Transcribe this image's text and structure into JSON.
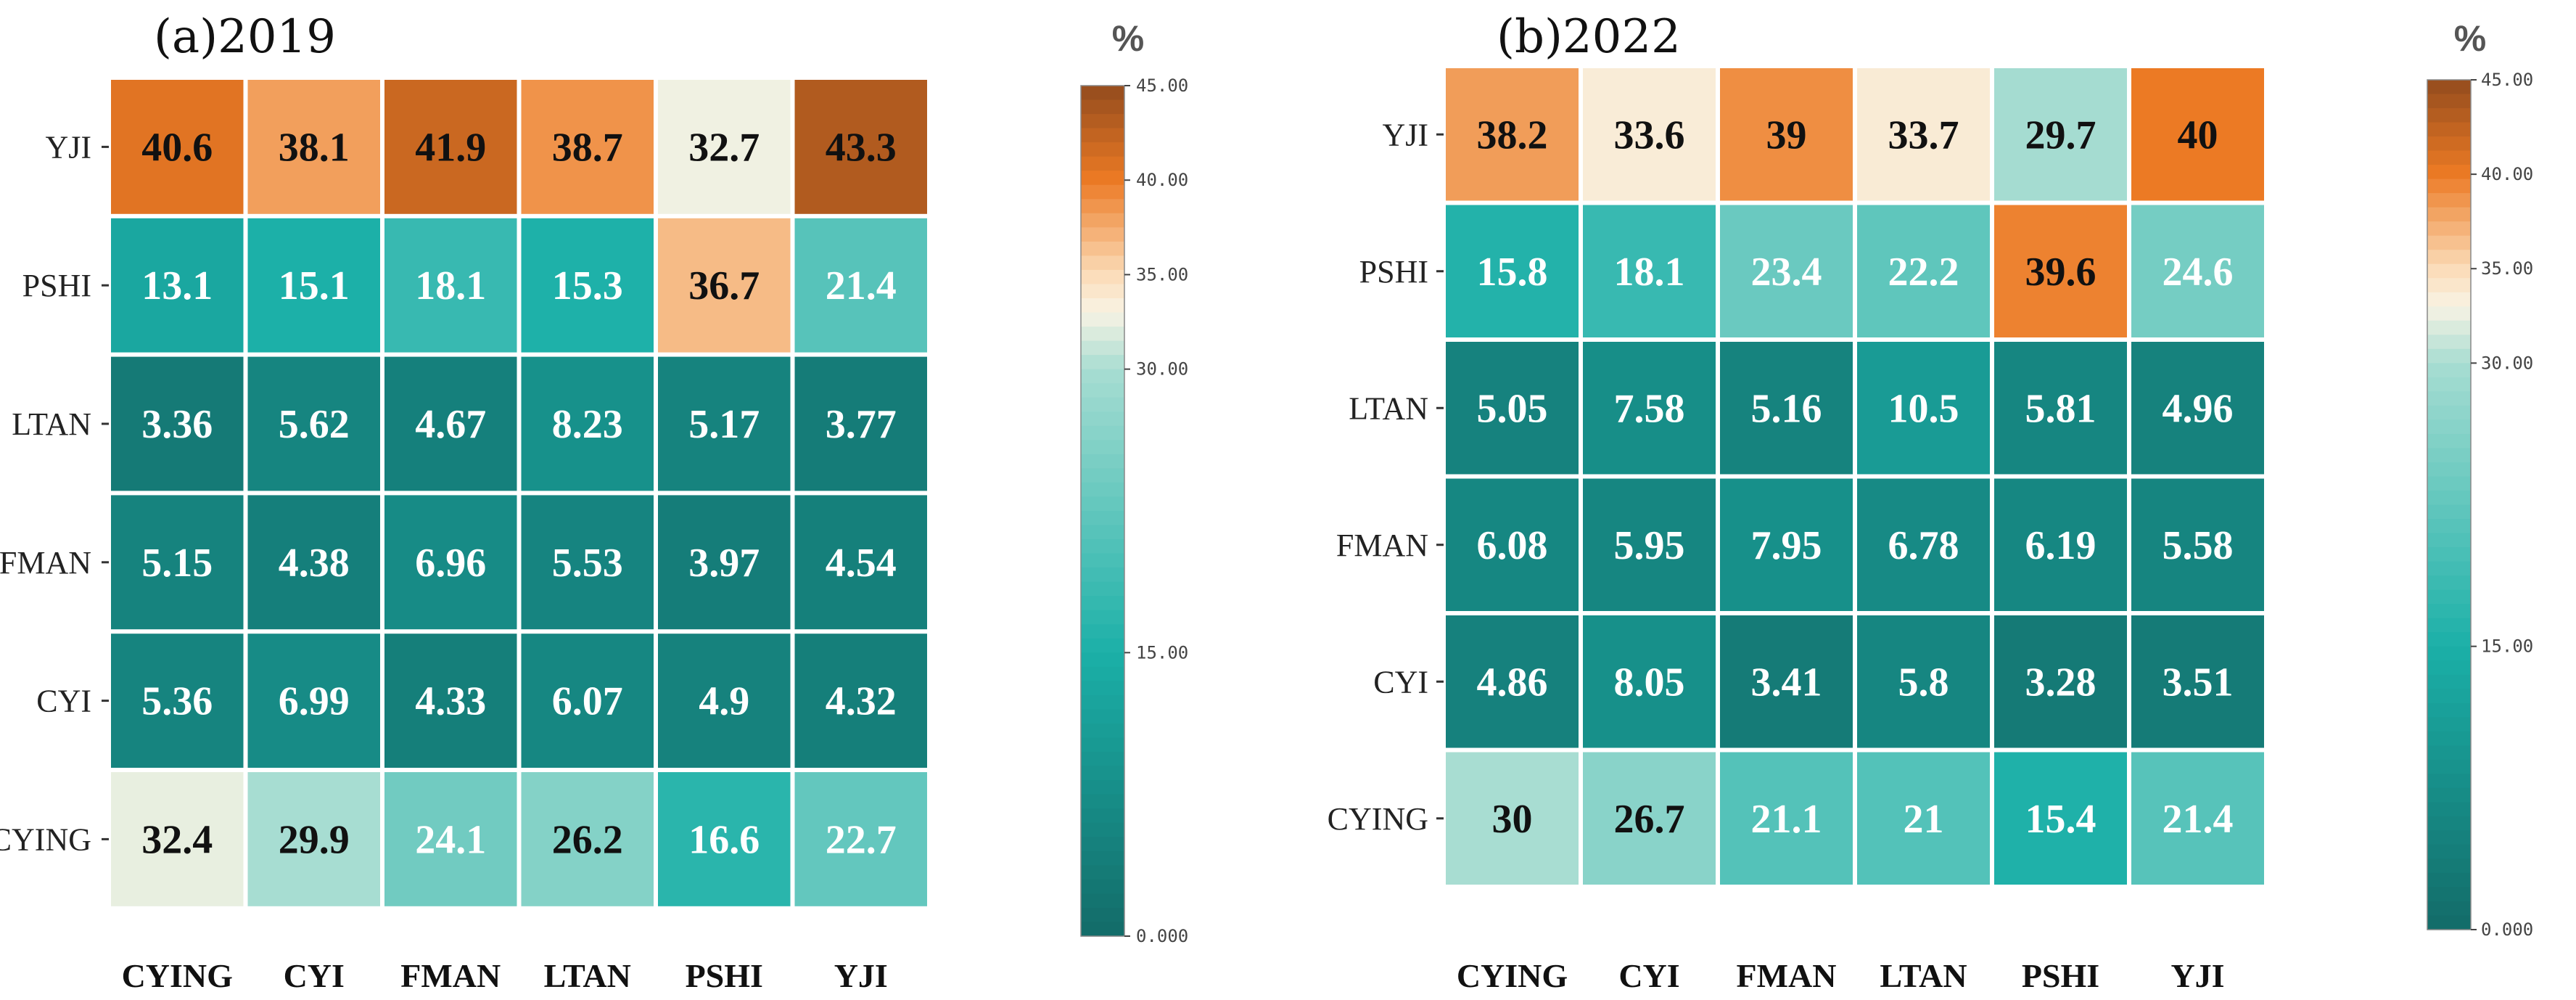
{
  "chart_data": [
    {
      "type": "heatmap",
      "title": "(a)2019",
      "rows": [
        "YJI",
        "PSHI",
        "LTAN",
        "FMAN",
        "CYI",
        "CYING"
      ],
      "columns": [
        "CYING",
        "CYI",
        "FMAN",
        "LTAN",
        "PSHI",
        "YJI"
      ],
      "values": [
        [
          "40.6",
          "38.1",
          "41.9",
          "38.7",
          "32.7",
          "43.3"
        ],
        [
          "13.1",
          "15.1",
          "18.1",
          "15.3",
          "36.7",
          "21.4"
        ],
        [
          "3.36",
          "5.62",
          "4.67",
          "8.23",
          "5.17",
          "3.77"
        ],
        [
          "5.15",
          "4.38",
          "6.96",
          "5.53",
          "3.97",
          "4.54"
        ],
        [
          "5.36",
          "6.99",
          "4.33",
          "6.07",
          "4.9",
          "4.32"
        ],
        [
          "32.4",
          "29.9",
          "24.1",
          "26.2",
          "16.6",
          "22.7"
        ]
      ],
      "colorbar": {
        "label": "%",
        "min": 0,
        "max": 45,
        "ticks": [
          "0.000",
          "15.00",
          "30.00",
          "35.00",
          "40.00",
          "45.00"
        ]
      }
    },
    {
      "type": "heatmap",
      "title": "(b)2022",
      "rows": [
        "YJI",
        "PSHI",
        "LTAN",
        "FMAN",
        "CYI",
        "CYING"
      ],
      "columns": [
        "CYING",
        "CYI",
        "FMAN",
        "LTAN",
        "PSHI",
        "YJI"
      ],
      "values": [
        [
          "38.2",
          "33.6",
          "39",
          "33.7",
          "29.7",
          "40"
        ],
        [
          "15.8",
          "18.1",
          "23.4",
          "22.2",
          "39.6",
          "24.6"
        ],
        [
          "5.05",
          "7.58",
          "5.16",
          "10.5",
          "5.81",
          "4.96"
        ],
        [
          "6.08",
          "5.95",
          "7.95",
          "6.78",
          "6.19",
          "5.58"
        ],
        [
          "4.86",
          "8.05",
          "3.41",
          "5.8",
          "3.28",
          "3.51"
        ],
        [
          "30",
          "26.7",
          "21.1",
          "21",
          "15.4",
          "21.4"
        ]
      ],
      "colorbar": {
        "label": "%",
        "min": 0,
        "max": 45,
        "ticks": [
          "0.000",
          "15.00",
          "30.00",
          "35.00",
          "40.00",
          "45.00"
        ]
      }
    }
  ],
  "colors": {
    "c0": "#136b68",
    "c15": "#1bb0a8",
    "c30": "#a8ddd2",
    "c33": "#f8f3e4",
    "c35": "#fbdcb8",
    "c40": "#ec7a24",
    "c45": "#934b1d",
    "text_dark": "#111111",
    "text_light": "#ffffff",
    "grid": "#ffffff"
  }
}
